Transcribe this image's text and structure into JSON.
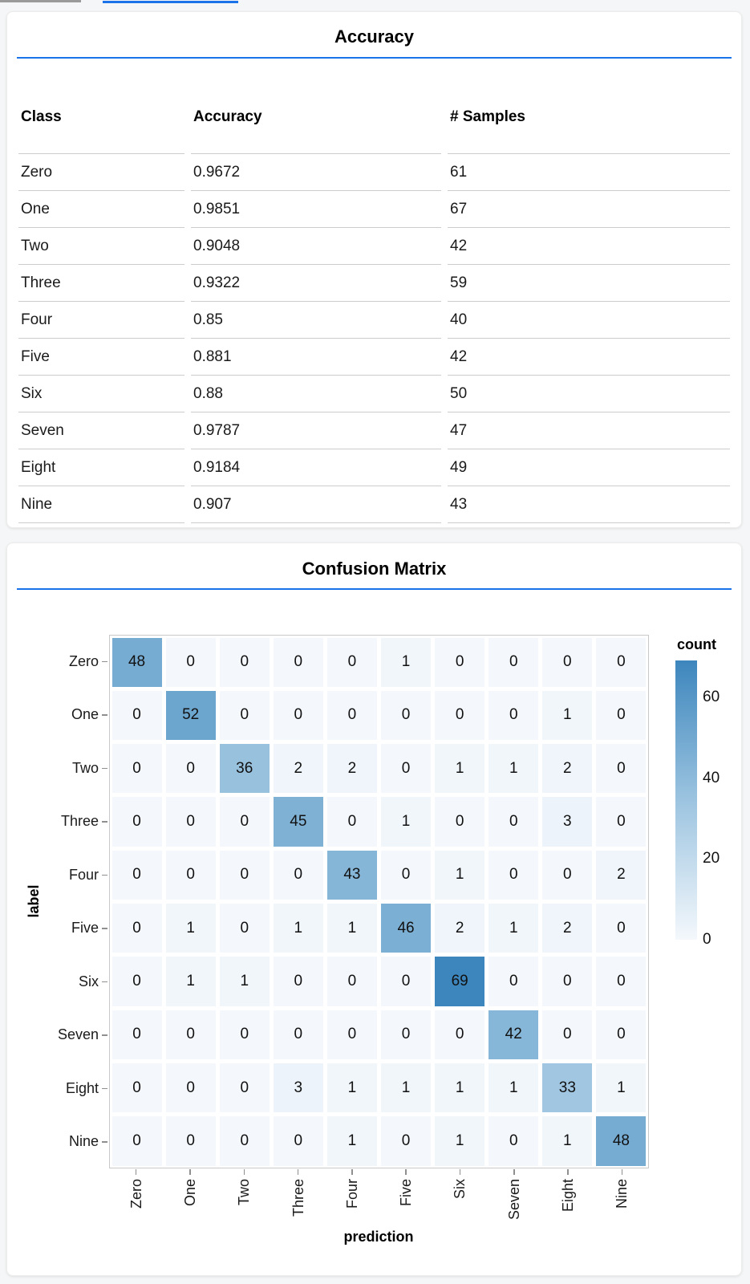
{
  "page": {
    "background": "#f5f6f7",
    "accent_blue": "#1a73e8",
    "scrollbar_gray": "#9a9a9a"
  },
  "chart_data": [
    {
      "type": "table",
      "title": "Accuracy",
      "columns": [
        "Class",
        "Accuracy",
        "# Samples"
      ],
      "rows": [
        {
          "class": "Zero",
          "accuracy": "0.9672",
          "samples": "61"
        },
        {
          "class": "One",
          "accuracy": "0.9851",
          "samples": "67"
        },
        {
          "class": "Two",
          "accuracy": "0.9048",
          "samples": "42"
        },
        {
          "class": "Three",
          "accuracy": "0.9322",
          "samples": "59"
        },
        {
          "class": "Four",
          "accuracy": "0.85",
          "samples": "40"
        },
        {
          "class": "Five",
          "accuracy": "0.881",
          "samples": "42"
        },
        {
          "class": "Six",
          "accuracy": "0.88",
          "samples": "50"
        },
        {
          "class": "Seven",
          "accuracy": "0.9787",
          "samples": "47"
        },
        {
          "class": "Eight",
          "accuracy": "0.9184",
          "samples": "49"
        },
        {
          "class": "Nine",
          "accuracy": "0.907",
          "samples": "43"
        }
      ]
    },
    {
      "type": "heatmap",
      "title": "Confusion Matrix",
      "xlabel": "prediction",
      "ylabel": "label",
      "x_categories": [
        "Zero",
        "One",
        "Two",
        "Three",
        "Four",
        "Five",
        "Six",
        "Seven",
        "Eight",
        "Nine"
      ],
      "y_categories": [
        "Zero",
        "One",
        "Two",
        "Three",
        "Four",
        "Five",
        "Six",
        "Seven",
        "Eight",
        "Nine"
      ],
      "matrix": [
        [
          48,
          0,
          0,
          0,
          0,
          1,
          0,
          0,
          0,
          0
        ],
        [
          0,
          52,
          0,
          0,
          0,
          0,
          0,
          0,
          1,
          0
        ],
        [
          0,
          0,
          36,
          2,
          2,
          0,
          1,
          1,
          2,
          0
        ],
        [
          0,
          0,
          0,
          45,
          0,
          1,
          0,
          0,
          3,
          0
        ],
        [
          0,
          0,
          0,
          0,
          43,
          0,
          1,
          0,
          0,
          2
        ],
        [
          0,
          1,
          0,
          1,
          1,
          46,
          2,
          1,
          2,
          0
        ],
        [
          0,
          1,
          1,
          0,
          0,
          0,
          69,
          0,
          0,
          0
        ],
        [
          0,
          0,
          0,
          0,
          0,
          0,
          0,
          42,
          0,
          0
        ],
        [
          0,
          0,
          0,
          3,
          1,
          1,
          1,
          1,
          33,
          1
        ],
        [
          0,
          0,
          0,
          0,
          1,
          0,
          1,
          0,
          1,
          48
        ]
      ],
      "color_scale": {
        "domain": [
          0,
          69
        ],
        "min_color": "#f4f8fc",
        "mid_color": "#9cc4e0",
        "max_color": "#3d86bd"
      },
      "legend": {
        "title": "count",
        "ticks": [
          0,
          20,
          40,
          60
        ]
      },
      "grid": false,
      "legend_position": "right"
    }
  ]
}
